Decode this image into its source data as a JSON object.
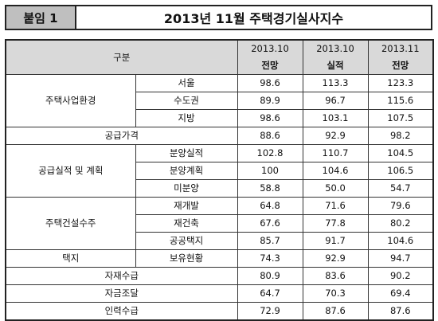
{
  "header": {
    "tag": "붙임 1",
    "title": "2013년 11월 주택경기실사지수"
  },
  "table": {
    "col_header_label": "구분",
    "periods": [
      {
        "date": "2013.10",
        "type": "전망"
      },
      {
        "date": "2013.10",
        "type": "실적"
      },
      {
        "date": "2013.11",
        "type": "전망"
      }
    ],
    "groups": {
      "housing_env": "주택사업환경",
      "supply_price": "공급가격",
      "supply_plan": "공급실적 및 계획",
      "construction_orders": "주택건설수주",
      "land": "택지",
      "materials": "자재수급",
      "funding": "자금조달",
      "labor": "인력수급"
    },
    "rows": [
      {
        "sub": "서울",
        "values": [
          "98.6",
          "113.3",
          "123.3"
        ]
      },
      {
        "sub": "수도권",
        "values": [
          "89.9",
          "96.7",
          "115.6"
        ]
      },
      {
        "sub": "지방",
        "values": [
          "98.6",
          "103.1",
          "107.5"
        ]
      },
      {
        "sub": "",
        "values": [
          "88.6",
          "92.9",
          "98.2"
        ]
      },
      {
        "sub": "분양실적",
        "values": [
          "102.8",
          "110.7",
          "104.5"
        ]
      },
      {
        "sub": "분양계획",
        "values": [
          "100",
          "104.6",
          "106.5"
        ]
      },
      {
        "sub": "미분양",
        "values": [
          "58.8",
          "50.0",
          "54.7"
        ]
      },
      {
        "sub": "재개발",
        "values": [
          "64.8",
          "71.6",
          "79.6"
        ]
      },
      {
        "sub": "재건축",
        "values": [
          "67.6",
          "77.8",
          "80.2"
        ]
      },
      {
        "sub": "공공택지",
        "values": [
          "85.7",
          "91.7",
          "104.6"
        ]
      },
      {
        "sub": "보유현황",
        "values": [
          "74.3",
          "92.9",
          "94.7"
        ]
      },
      {
        "sub": "",
        "values": [
          "80.9",
          "83.6",
          "90.2"
        ]
      },
      {
        "sub": "",
        "values": [
          "64.7",
          "70.3",
          "69.4"
        ]
      },
      {
        "sub": "",
        "values": [
          "72.9",
          "87.6",
          "87.6"
        ]
      }
    ]
  }
}
